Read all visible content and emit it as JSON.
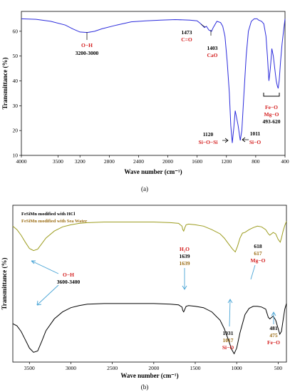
{
  "colors": {
    "spectrum_a": "#2b2bdc",
    "hcl_series": "#000000",
    "seawater_series": "#9c9c1e",
    "annotation_red": "#d42020",
    "annotation_gold": "#9c6d15",
    "arrow_blue": "#4aa5d6"
  },
  "chart_data": [
    {
      "type": "line",
      "caption": "(a)",
      "xlabel": "Wave number (cm⁻¹)",
      "ylabel": "Transmittance (%)",
      "xlim": [
        4000,
        400
      ],
      "ylim": [
        10,
        68
      ],
      "x_ticks": [
        "4000",
        "3500",
        "3200",
        "2800",
        "2400",
        "2000",
        "1600",
        "1200",
        "800",
        "400"
      ],
      "y_ticks": [
        "10",
        "20",
        "30",
        "40",
        "50",
        "60"
      ],
      "grid": false,
      "series": [
        {
          "x": [
            4000,
            3800,
            3600,
            3400,
            3300,
            3200,
            3100,
            3000,
            2900,
            2700,
            2500,
            2300,
            2100,
            1900,
            1700,
            1600,
            1550,
            1500,
            1473,
            1440,
            1403,
            1380,
            1330,
            1280,
            1250,
            1220,
            1190,
            1160,
            1140,
            1120,
            1100,
            1080,
            1060,
            1040,
            1011,
            990,
            960,
            930,
            900,
            860,
            820,
            800,
            780,
            760,
            720,
            690,
            660,
            640,
            620,
            600,
            590,
            580,
            560,
            540,
            520,
            505,
            493,
            480,
            460,
            440,
            420,
            400
          ],
          "y": [
            65,
            64.8,
            64,
            62.5,
            61,
            59.7,
            59.5,
            60,
            61,
            62.5,
            63.8,
            64.2,
            64.5,
            64.7,
            64.5,
            64.2,
            63,
            61.5,
            62,
            60.5,
            60,
            61.5,
            64,
            63.5,
            62,
            58,
            48,
            35,
            22,
            15,
            21,
            28,
            25,
            22,
            16,
            20,
            35,
            50,
            60,
            64,
            65,
            65,
            65,
            64.5,
            64,
            63,
            58,
            50,
            40,
            45,
            49,
            53,
            50,
            45,
            40,
            38,
            37,
            40,
            48,
            55,
            60,
            65
          ]
        }
      ],
      "annotations": [
        {
          "text": "O−H",
          "color": "annotation_red"
        },
        {
          "text": "3200-3000",
          "color": "black"
        },
        {
          "text": "1473",
          "color": "black"
        },
        {
          "text": "C=O",
          "color": "annotation_red"
        },
        {
          "text": "1403",
          "color": "black"
        },
        {
          "text": "CaO",
          "color": "annotation_red"
        },
        {
          "text": "1120",
          "color": "black"
        },
        {
          "text": "Si−O−Si",
          "color": "annotation_red"
        },
        {
          "text": "1011",
          "color": "black"
        },
        {
          "text": "Si−O",
          "color": "annotation_red"
        },
        {
          "text": "Fe−O",
          "color": "annotation_red"
        },
        {
          "text": "Mg−O",
          "color": "annotation_red"
        },
        {
          "text": "493-620",
          "color": "black"
        }
      ]
    },
    {
      "type": "line",
      "caption": "(b)",
      "xlabel": "Wave number (cm⁻¹)",
      "ylabel": "Transmittance (%)",
      "xlim": [
        3700,
        400
      ],
      "x_ticks": [
        "3500",
        "3000",
        "2500",
        "2000",
        "1500",
        "1000",
        "500"
      ],
      "grid": false,
      "legend": [
        "FeSiMn modified with HCl",
        "FeSiMn modified with Sea Water"
      ],
      "series": [
        {
          "name": "FeSiMn modified with HCl",
          "color": "hcl_series",
          "x": [
            3700,
            3650,
            3600,
            3550,
            3500,
            3450,
            3400,
            3350,
            3300,
            3200,
            3100,
            3000,
            2900,
            2800,
            2600,
            2400,
            2200,
            2000,
            1800,
            1700,
            1660,
            1650,
            1639,
            1625,
            1610,
            1580,
            1500,
            1400,
            1300,
            1200,
            1150,
            1100,
            1060,
            1031,
            1000,
            960,
            900,
            850,
            800,
            750,
            700,
            650,
            618,
            600,
            560,
            530,
            500,
            481,
            460,
            440,
            420,
            400
          ],
          "y": [
            0.55,
            0.52,
            0.44,
            0.32,
            0.2,
            0.14,
            0.16,
            0.3,
            0.45,
            0.62,
            0.72,
            0.78,
            0.81,
            0.83,
            0.84,
            0.84,
            0.84,
            0.84,
            0.83,
            0.82,
            0.79,
            0.74,
            0.72,
            0.76,
            0.8,
            0.81,
            0.8,
            0.78,
            0.72,
            0.6,
            0.48,
            0.32,
            0.18,
            0.12,
            0.2,
            0.42,
            0.68,
            0.77,
            0.8,
            0.8,
            0.79,
            0.76,
            0.64,
            0.62,
            0.66,
            0.6,
            0.48,
            0.4,
            0.44,
            0.6,
            0.76,
            0.84
          ]
        },
        {
          "name": "FeSiMn modified with Sea Water",
          "color": "seawater_series",
          "x": [
            3700,
            3650,
            3600,
            3550,
            3500,
            3450,
            3400,
            3350,
            3300,
            3200,
            3100,
            3000,
            2900,
            2800,
            2600,
            2400,
            2200,
            2000,
            1800,
            1700,
            1660,
            1650,
            1639,
            1625,
            1610,
            1580,
            1500,
            1400,
            1300,
            1200,
            1150,
            1100,
            1050,
            1017,
            990,
            960,
            930,
            900,
            850,
            800,
            750,
            700,
            650,
            617,
            600,
            560,
            530,
            500,
            475,
            460,
            440,
            420,
            400
          ],
          "y": [
            1.95,
            1.9,
            1.82,
            1.72,
            1.63,
            1.6,
            1.62,
            1.7,
            1.78,
            1.88,
            1.94,
            1.97,
            1.99,
            2.0,
            2.01,
            2.01,
            2.01,
            2.01,
            2.0,
            1.99,
            1.95,
            1.9,
            1.88,
            1.93,
            1.97,
            1.98,
            1.97,
            1.95,
            1.9,
            1.84,
            1.78,
            1.7,
            1.62,
            1.58,
            1.66,
            1.78,
            1.85,
            1.86,
            1.9,
            1.93,
            1.95,
            1.94,
            1.9,
            1.84,
            1.82,
            1.86,
            1.84,
            1.76,
            1.72,
            1.78,
            1.88,
            1.96,
            2.02
          ]
        }
      ],
      "annotations": [
        {
          "text": "O−H",
          "color": "annotation_red"
        },
        {
          "text": "3600-3400",
          "color": "black"
        },
        {
          "text": "H₂O",
          "color": "annotation_red"
        },
        {
          "text": "1639",
          "color": "black"
        },
        {
          "text": "1639",
          "color": "annotation_gold"
        },
        {
          "text": "618",
          "color": "black"
        },
        {
          "text": "617",
          "color": "annotation_gold"
        },
        {
          "text": "Mg−O",
          "color": "annotation_red"
        },
        {
          "text": "1031",
          "color": "black"
        },
        {
          "text": "1017",
          "color": "annotation_gold"
        },
        {
          "text": "Si−O",
          "color": "annotation_red"
        },
        {
          "text": "481",
          "color": "black"
        },
        {
          "text": "475",
          "color": "annotation_gold"
        },
        {
          "text": "Fe−O",
          "color": "annotation_red"
        }
      ]
    }
  ]
}
